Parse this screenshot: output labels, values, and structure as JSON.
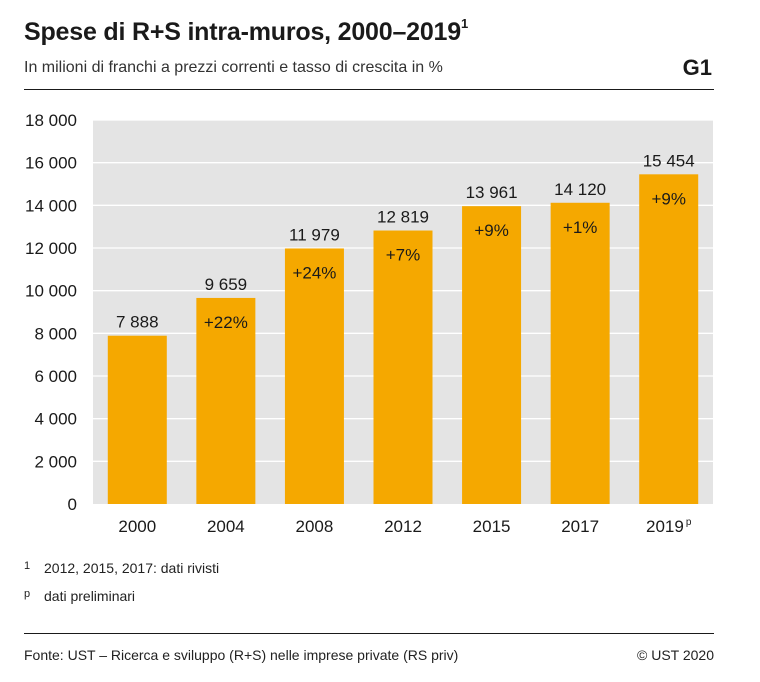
{
  "header": {
    "title": "Spese di R+S intra-muros, 2000–2019",
    "title_note": "1",
    "subtitle": "In milioni di franchi a prezzi correnti e tasso di crescita in %",
    "code": "G1"
  },
  "colors": {
    "bar": "#F5A800",
    "plot_bg": "#E4E4E4",
    "grid": "#FFFFFF"
  },
  "chart_data": {
    "type": "bar",
    "title": "Spese di R+S intra-muros, 2000–2019",
    "categories": [
      "2000",
      "2004",
      "2008",
      "2012",
      "2015",
      "2017",
      "2019"
    ],
    "category_suffix": [
      "",
      "",
      "",
      "",
      "",
      "",
      "p"
    ],
    "values": [
      7888,
      9659,
      11979,
      12819,
      13961,
      14120,
      15454
    ],
    "value_labels": [
      "7 888",
      "9 659",
      "11 979",
      "12 819",
      "13 961",
      "14 120",
      "15 454"
    ],
    "growth_labels": [
      "",
      "+22%",
      "+24%",
      "+7%",
      "+9%",
      "+1%",
      "+9%"
    ],
    "ylim": [
      0,
      18000
    ],
    "yticks": [
      0,
      2000,
      4000,
      6000,
      8000,
      10000,
      12000,
      14000,
      16000,
      18000
    ],
    "ytick_labels": [
      "0",
      "2 000",
      "4 000",
      "6 000",
      "8 000",
      "10 000",
      "12 000",
      "14 000",
      "16 000",
      "18 000"
    ],
    "grid": true
  },
  "footnotes": [
    {
      "mark": "1",
      "text": "2012, 2015, 2017: dati rivisti"
    },
    {
      "mark": "p",
      "text": "dati preliminari"
    }
  ],
  "footer": {
    "source": "Fonte: UST – Ricerca e sviluppo (R+S) nelle imprese private (RS priv)",
    "copyright": "© UST 2020"
  }
}
